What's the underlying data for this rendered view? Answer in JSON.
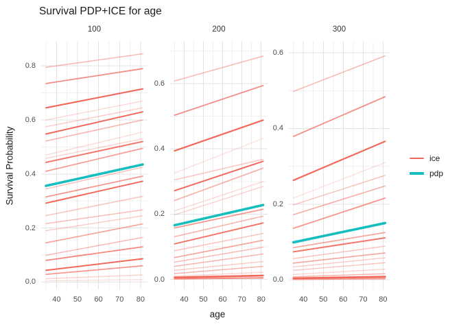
{
  "title": "Survival PDP+ICE for age",
  "axes": {
    "x_label": "age",
    "y_label": "Survival Probability"
  },
  "legend": {
    "items": [
      {
        "label": "ice",
        "color": "#f2695c",
        "thickness": 2
      },
      {
        "label": "pdp",
        "color": "#17bebf",
        "thickness": 4
      }
    ]
  },
  "colors": {
    "ice": "#f2695c",
    "pdp": "#17bebf",
    "grid_major": "#e3e3e3",
    "grid_minor": "#f0f0f0",
    "tick_text": "#4d4d4d",
    "background": "#ffffff"
  },
  "chart_data": {
    "type": "line",
    "title": "Survival PDP+ICE for age",
    "xlabel": "age",
    "ylabel": "Survival Probability",
    "x_range": [
      35,
      81
    ],
    "x_ticks": [
      40,
      50,
      60,
      70,
      80
    ],
    "x_minor_ticks": [
      35,
      45,
      55,
      65,
      75
    ],
    "xlim": [
      32.7,
      83.3
    ],
    "grid": true,
    "legend_entries": [
      "ice",
      "pdp"
    ],
    "legend_position": "right",
    "series_note": "ice_lines are [y_at_age35, y_at_age81, opacity, stroke_width]; pdp is the averaged partial-dependence line",
    "panels": [
      {
        "facet": "100",
        "ylim": [
          -0.027,
          0.892
        ],
        "y_ticks": [
          0.0,
          0.2,
          0.4,
          0.6,
          0.8
        ],
        "y_minor_ticks": [
          0.1,
          0.3,
          0.5,
          0.7
        ],
        "pdp": [
          0.356,
          0.435
        ],
        "ice_lines": [
          [
            0.795,
            0.845,
            0.45,
            1.6
          ],
          [
            0.735,
            0.79,
            0.75,
            1.8
          ],
          [
            0.645,
            0.715,
            1.0,
            2.2
          ],
          [
            0.6,
            0.67,
            0.25,
            1.4
          ],
          [
            0.575,
            0.645,
            0.35,
            1.4
          ],
          [
            0.548,
            0.63,
            1.0,
            2.0
          ],
          [
            0.522,
            0.6,
            0.5,
            1.6
          ],
          [
            0.47,
            0.555,
            0.25,
            1.4
          ],
          [
            0.458,
            0.53,
            0.3,
            1.4
          ],
          [
            0.443,
            0.52,
            0.9,
            2.0
          ],
          [
            0.41,
            0.495,
            0.65,
            1.8
          ],
          [
            0.345,
            0.425,
            0.4,
            1.5
          ],
          [
            0.315,
            0.392,
            0.7,
            1.8
          ],
          [
            0.292,
            0.373,
            1.0,
            2.0
          ],
          [
            0.246,
            0.317,
            0.4,
            1.5
          ],
          [
            0.216,
            0.267,
            0.45,
            1.5
          ],
          [
            0.19,
            0.245,
            0.35,
            1.4
          ],
          [
            0.145,
            0.215,
            0.6,
            1.7
          ],
          [
            0.099,
            0.165,
            0.45,
            1.5
          ],
          [
            0.08,
            0.13,
            0.8,
            1.8
          ],
          [
            0.043,
            0.086,
            1.0,
            2.0
          ],
          [
            0.028,
            0.06,
            0.7,
            1.7
          ],
          [
            0.012,
            0.026,
            0.3,
            1.4
          ],
          [
            0.004,
            0.009,
            0.2,
            1.3
          ]
        ]
      },
      {
        "facet": "200",
        "ylim": [
          -0.03,
          0.73
        ],
        "y_ticks": [
          0.0,
          0.2,
          0.4,
          0.6
        ],
        "y_minor_ticks": [
          0.1,
          0.3,
          0.5,
          0.7
        ],
        "pdp": [
          0.166,
          0.228
        ],
        "ice_lines": [
          [
            0.608,
            0.684,
            0.45,
            1.6
          ],
          [
            0.503,
            0.594,
            0.75,
            1.8
          ],
          [
            0.394,
            0.488,
            1.0,
            2.2
          ],
          [
            0.326,
            0.432,
            0.2,
            1.4
          ],
          [
            0.305,
            0.368,
            0.4,
            1.5
          ],
          [
            0.272,
            0.362,
            1.0,
            2.0
          ],
          [
            0.242,
            0.341,
            0.55,
            1.6
          ],
          [
            0.21,
            0.3,
            0.25,
            1.4
          ],
          [
            0.198,
            0.285,
            0.3,
            1.4
          ],
          [
            0.158,
            0.215,
            0.7,
            1.8
          ],
          [
            0.131,
            0.194,
            0.5,
            1.6
          ],
          [
            0.109,
            0.173,
            0.9,
            2.0
          ],
          [
            0.088,
            0.141,
            0.4,
            1.5
          ],
          [
            0.067,
            0.12,
            0.6,
            1.7
          ],
          [
            0.053,
            0.099,
            0.45,
            1.5
          ],
          [
            0.04,
            0.078,
            0.5,
            1.5
          ],
          [
            0.028,
            0.055,
            0.35,
            1.4
          ],
          [
            0.018,
            0.04,
            0.5,
            1.5
          ],
          [
            0.01,
            0.022,
            0.3,
            1.4
          ],
          [
            0.006,
            0.012,
            1.0,
            2.6
          ],
          [
            0.002,
            0.005,
            0.8,
            2.0
          ]
        ]
      },
      {
        "facet": "300",
        "ylim": [
          -0.025,
          0.631
        ],
        "y_ticks": [
          0.0,
          0.2,
          0.4,
          0.6
        ],
        "y_minor_ticks": [
          0.1,
          0.3,
          0.5
        ],
        "pdp": [
          0.099,
          0.15
        ],
        "ice_lines": [
          [
            0.498,
            0.592,
            0.45,
            1.6
          ],
          [
            0.379,
            0.484,
            0.75,
            1.8
          ],
          [
            0.263,
            0.366,
            1.0,
            2.2
          ],
          [
            0.216,
            0.31,
            0.2,
            1.4
          ],
          [
            0.198,
            0.276,
            0.4,
            1.5
          ],
          [
            0.172,
            0.248,
            0.55,
            1.6
          ],
          [
            0.136,
            0.216,
            0.7,
            1.8
          ],
          [
            0.085,
            0.125,
            0.6,
            1.7
          ],
          [
            0.074,
            0.111,
            0.9,
            2.0
          ],
          [
            0.056,
            0.089,
            0.4,
            1.5
          ],
          [
            0.044,
            0.071,
            0.6,
            1.6
          ],
          [
            0.034,
            0.058,
            0.35,
            1.4
          ],
          [
            0.025,
            0.045,
            0.4,
            1.4
          ],
          [
            0.014,
            0.028,
            0.3,
            1.4
          ],
          [
            0.008,
            0.016,
            0.5,
            1.5
          ],
          [
            0.004,
            0.008,
            1.0,
            2.8
          ],
          [
            0.001,
            0.003,
            0.7,
            1.8
          ]
        ]
      }
    ]
  }
}
